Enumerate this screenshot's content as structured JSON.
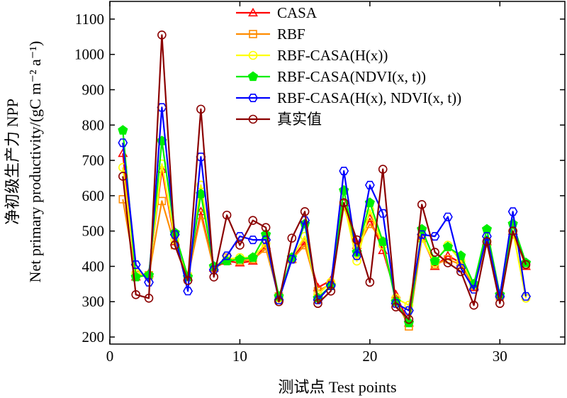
{
  "chart_data": {
    "type": "line",
    "xlabel": "测试点 Test points",
    "ylabel_line1": "净初级生产力 NPP",
    "ylabel_line2": "Net primary productivity/(gC m⁻² a⁻¹)",
    "xlim": [
      0,
      35
    ],
    "ylim": [
      180,
      1150
    ],
    "x_ticks": [
      0,
      10,
      20,
      30
    ],
    "y_ticks": [
      200,
      300,
      400,
      500,
      600,
      700,
      800,
      900,
      1000,
      1100
    ],
    "x": [
      1,
      2,
      3,
      4,
      5,
      6,
      7,
      8,
      9,
      10,
      11,
      12,
      13,
      14,
      15,
      16,
      17,
      18,
      19,
      20,
      21,
      22,
      23,
      24,
      25,
      26,
      27,
      28,
      29,
      30,
      31,
      32
    ],
    "legend_position": "top-right",
    "series": [
      {
        "name": "CASA",
        "color": "#ff0000",
        "marker": "triangle",
        "values": [
          720,
          370,
          380,
          675,
          470,
          370,
          555,
          395,
          415,
          410,
          415,
          460,
          310,
          420,
          470,
          340,
          360,
          580,
          460,
          535,
          445,
          320,
          240,
          485,
          400,
          430,
          410,
          340,
          470,
          320,
          500,
          400
        ]
      },
      {
        "name": "RBF",
        "color": "#ff8c00",
        "marker": "square",
        "values": [
          590,
          375,
          375,
          585,
          460,
          370,
          545,
          395,
          425,
          415,
          420,
          450,
          315,
          420,
          460,
          330,
          350,
          570,
          450,
          520,
          470,
          305,
          230,
          480,
          405,
          420,
          405,
          345,
          465,
          315,
          490,
          405
        ]
      },
      {
        "name": "RBF-CASA(H(x))",
        "color": "#ffff00",
        "marker": "circle",
        "values": [
          680,
          380,
          375,
          690,
          475,
          375,
          630,
          400,
          420,
          425,
          425,
          465,
          310,
          425,
          485,
          320,
          355,
          580,
          415,
          560,
          460,
          310,
          290,
          480,
          410,
          460,
          415,
          350,
          470,
          315,
          500,
          310
        ]
      },
      {
        "name": "RBF-CASA(NDVI(x, t))",
        "color": "#00ee00",
        "marker": "pentagon",
        "values": [
          785,
          370,
          375,
          755,
          495,
          370,
          605,
          400,
          415,
          420,
          425,
          490,
          315,
          425,
          520,
          310,
          345,
          615,
          440,
          580,
          470,
          300,
          240,
          505,
          415,
          455,
          430,
          350,
          505,
          320,
          520,
          410
        ]
      },
      {
        "name": "RBF-CASA(H(x), NDVI(x, t))",
        "color": "#0000ff",
        "marker": "hexagon",
        "values": [
          750,
          405,
          355,
          850,
          490,
          330,
          710,
          390,
          430,
          485,
          475,
          475,
          305,
          420,
          530,
          305,
          345,
          670,
          430,
          630,
          550,
          295,
          275,
          490,
          485,
          540,
          395,
          335,
          485,
          315,
          555,
          315
        ]
      },
      {
        "name": "真实值",
        "color": "#8b0000",
        "marker": "open-circle",
        "values": [
          655,
          320,
          310,
          1055,
          460,
          360,
          845,
          370,
          545,
          460,
          530,
          510,
          300,
          480,
          555,
          295,
          330,
          580,
          475,
          355,
          675,
          285,
          250,
          575,
          440,
          410,
          385,
          290,
          470,
          295,
          500,
          405
        ]
      }
    ]
  }
}
